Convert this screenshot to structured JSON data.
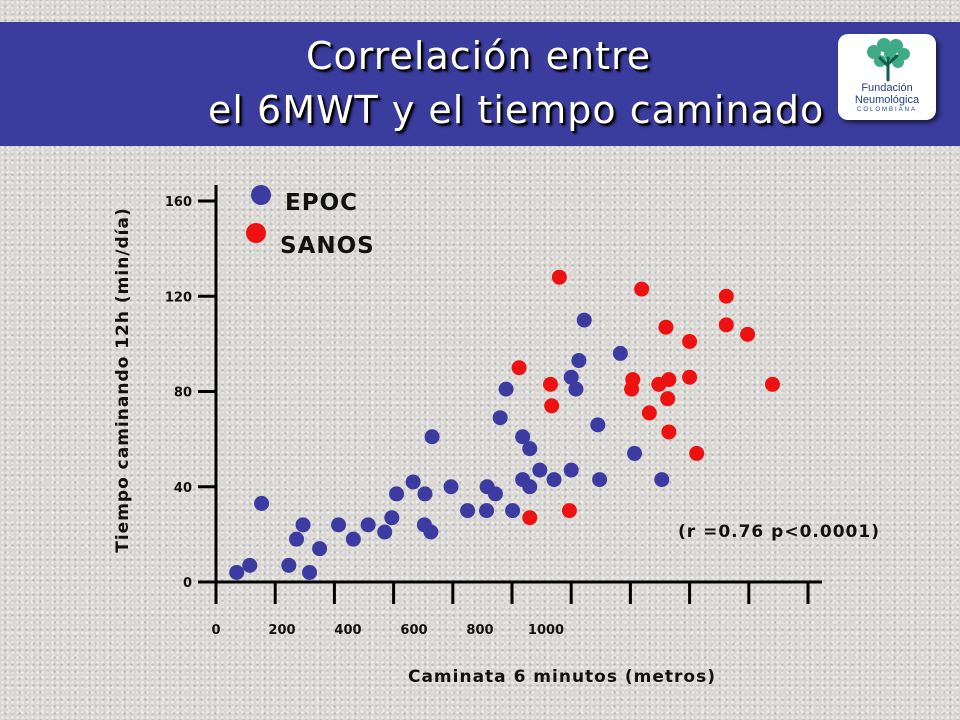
{
  "slide": {
    "title_line1": "Correlación entre",
    "title_line2": "el 6MWT y el  tiempo caminado",
    "logo": {
      "line1": "Fundación",
      "line2": "Neumológica",
      "line3": "COLOMBIANA"
    }
  },
  "colors": {
    "title_bar": "#3a3c9e",
    "epoc": "#3b3ba2",
    "sanos": "#ee1111"
  },
  "chart_data": {
    "type": "scatter",
    "xlabel": "Caminata 6 minutos (metros)",
    "ylabel": "Tiempo caminando 12h (min/día)",
    "xlim": [
      0,
      1000
    ],
    "ylim": [
      0,
      160
    ],
    "x_ticks": [
      "0",
      "200",
      "400",
      "600",
      "800",
      "1000"
    ],
    "y_ticks": [
      "0",
      "40",
      "80",
      "120",
      "160"
    ],
    "grid": false,
    "legend_position": "top-left",
    "annotation": "(r =0.76 p<0.0001)",
    "series": [
      {
        "name": "EPOC",
        "color": "#3b3ba2",
        "points": [
          [
            35,
            4
          ],
          [
            57,
            7
          ],
          [
            77,
            33
          ],
          [
            123,
            7
          ],
          [
            136,
            18
          ],
          [
            147,
            24
          ],
          [
            158,
            4
          ],
          [
            175,
            14
          ],
          [
            207,
            24
          ],
          [
            232,
            18
          ],
          [
            257,
            24
          ],
          [
            285,
            21
          ],
          [
            297,
            27
          ],
          [
            305,
            37
          ],
          [
            333,
            42
          ],
          [
            353,
            37
          ],
          [
            352,
            24
          ],
          [
            363,
            21
          ],
          [
            365,
            61
          ],
          [
            397,
            40
          ],
          [
            425,
            30
          ],
          [
            457,
            30
          ],
          [
            458,
            40
          ],
          [
            472,
            37
          ],
          [
            480,
            69
          ],
          [
            490,
            81
          ],
          [
            501,
            30
          ],
          [
            518,
            61
          ],
          [
            518,
            43
          ],
          [
            530,
            40
          ],
          [
            530,
            56
          ],
          [
            547,
            47
          ],
          [
            571,
            43
          ],
          [
            600,
            47
          ],
          [
            600,
            86
          ],
          [
            608,
            81
          ],
          [
            613,
            93
          ],
          [
            622,
            110
          ],
          [
            645,
            66
          ],
          [
            648,
            43
          ],
          [
            683,
            96
          ],
          [
            707,
            54
          ],
          [
            753,
            43
          ]
        ]
      },
      {
        "name": "SANOS",
        "color": "#ee1111",
        "points": [
          [
            512,
            90
          ],
          [
            530,
            27
          ],
          [
            565,
            83
          ],
          [
            567,
            74
          ],
          [
            580,
            128
          ],
          [
            597,
            30
          ],
          [
            702,
            81
          ],
          [
            704,
            85
          ],
          [
            719,
            123
          ],
          [
            732,
            71
          ],
          [
            748,
            83
          ],
          [
            760,
            107
          ],
          [
            763,
            77
          ],
          [
            765,
            85
          ],
          [
            765,
            63
          ],
          [
            800,
            86
          ],
          [
            800,
            101
          ],
          [
            812,
            54
          ],
          [
            862,
            120
          ],
          [
            862,
            108
          ],
          [
            898,
            104
          ],
          [
            940,
            83
          ]
        ]
      }
    ]
  }
}
